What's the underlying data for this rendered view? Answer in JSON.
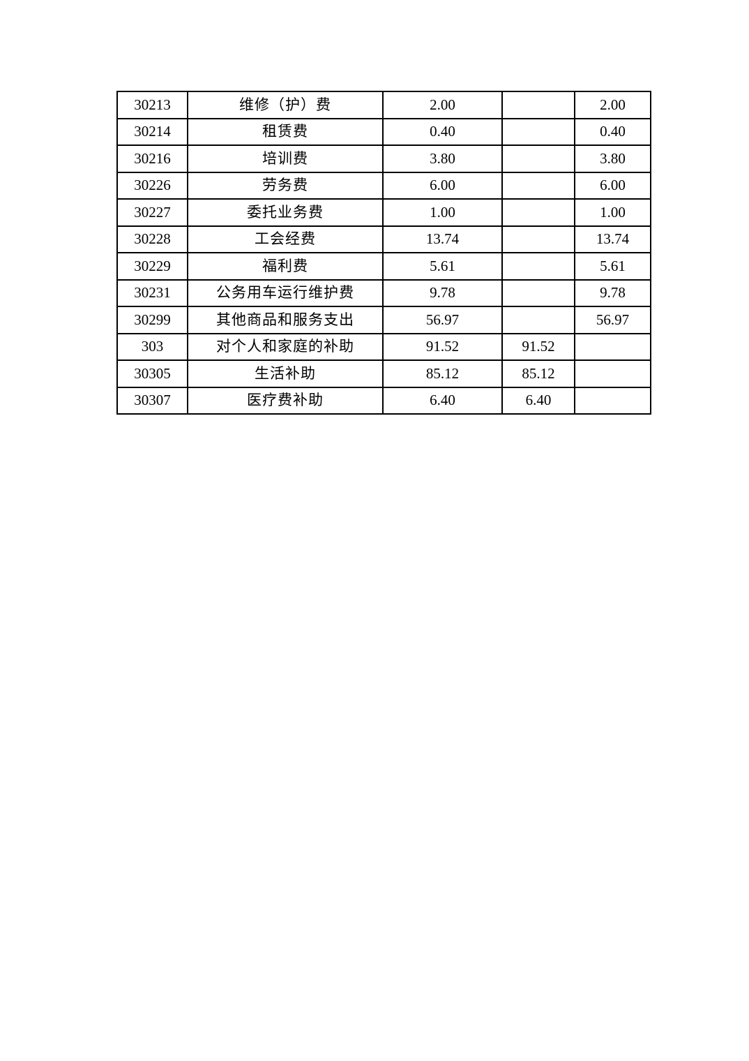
{
  "page": {
    "background_color": "#ffffff",
    "text_color": "#000000",
    "border_color": "#000000"
  },
  "table": {
    "cell_names": [
      "code-cell",
      "name-cell",
      "value1-cell",
      "value2-cell",
      "value3-cell"
    ],
    "rows": [
      [
        "30213",
        "维修（护）费",
        "2.00",
        "",
        "2.00"
      ],
      [
        "30214",
        "租赁费",
        "0.40",
        "",
        "0.40"
      ],
      [
        "30216",
        "培训费",
        "3.80",
        "",
        "3.80"
      ],
      [
        "30226",
        "劳务费",
        "6.00",
        "",
        "6.00"
      ],
      [
        "30227",
        "委托业务费",
        "1.00",
        "",
        "1.00"
      ],
      [
        "30228",
        "工会经费",
        "13.74",
        "",
        "13.74"
      ],
      [
        "30229",
        "福利费",
        "5.61",
        "",
        "5.61"
      ],
      [
        "30231",
        "公务用车运行维护费",
        "9.78",
        "",
        "9.78"
      ],
      [
        "30299",
        "其他商品和服务支出",
        "56.97",
        "",
        "56.97"
      ],
      [
        "303",
        "对个人和家庭的补助",
        "91.52",
        "91.52",
        ""
      ],
      [
        "30305",
        "生活补助",
        "85.12",
        "85.12",
        ""
      ],
      [
        "30307",
        "医疗费补助",
        "6.40",
        "6.40",
        ""
      ]
    ]
  }
}
